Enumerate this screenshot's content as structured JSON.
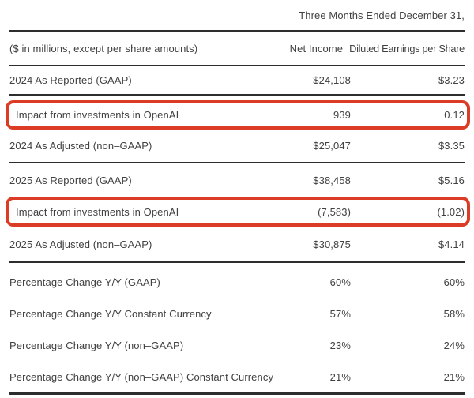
{
  "table": {
    "period_header": "Three Months Ended December 31,",
    "units_note": "($ in millions, except per share amounts)",
    "columns": {
      "net_income": "Net Income",
      "diluted_eps": "Diluted Earnings per Share"
    },
    "highlight_color": "#dc3b26",
    "rows": [
      {
        "label": "2024 As Reported (GAAP)",
        "net_income": "$24,108",
        "diluted_eps": "$3.23",
        "highlighted": false
      },
      {
        "label": "Impact from investments in OpenAI",
        "net_income": "939",
        "diluted_eps": "0.12",
        "highlighted": true
      },
      {
        "label": "2024 As Adjusted (non–GAAP)",
        "net_income": "$25,047",
        "diluted_eps": "$3.35",
        "highlighted": false
      },
      {
        "label": "2025 As Reported (GAAP)",
        "net_income": "$38,458",
        "diluted_eps": "$5.16",
        "highlighted": false
      },
      {
        "label": "Impact from investments in OpenAI",
        "net_income": "(7,583)",
        "diluted_eps": "(1.02)",
        "highlighted": true
      },
      {
        "label": "2025 As Adjusted (non–GAAP)",
        "net_income": "$30,875",
        "diluted_eps": "$4.14",
        "highlighted": false
      },
      {
        "label": "Percentage Change Y/Y (GAAP)",
        "net_income": "60%",
        "diluted_eps": "60%",
        "highlighted": false
      },
      {
        "label": "Percentage Change Y/Y Constant Currency",
        "net_income": "57%",
        "diluted_eps": "58%",
        "highlighted": false
      },
      {
        "label": "Percentage Change Y/Y (non–GAAP)",
        "net_income": "23%",
        "diluted_eps": "24%",
        "highlighted": false
      },
      {
        "label": "Percentage Change Y/Y (non–GAAP) Constant Currency",
        "net_income": "21%",
        "diluted_eps": "21%",
        "highlighted": false
      }
    ]
  }
}
